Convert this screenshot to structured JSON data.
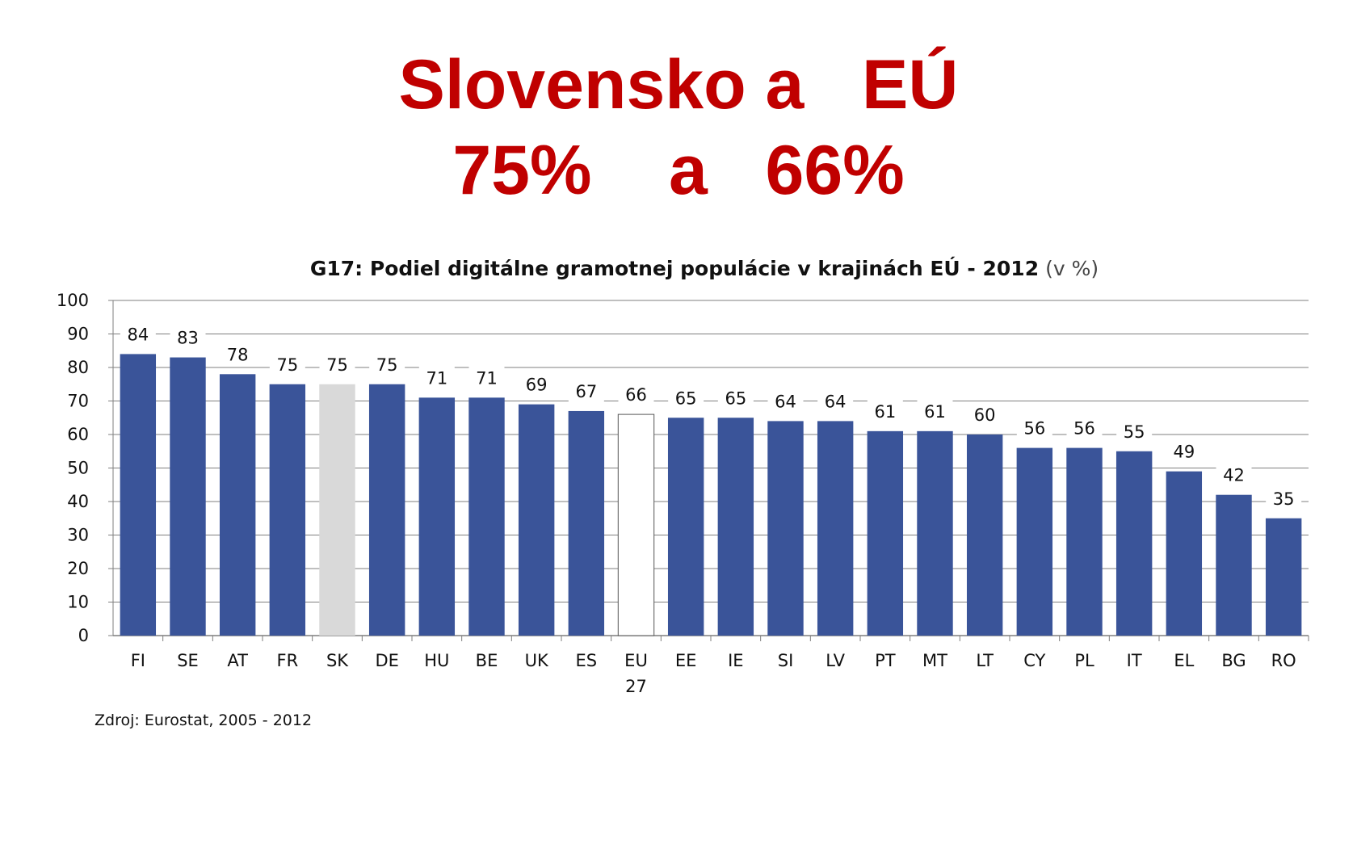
{
  "headline": {
    "line1": "Slovensko a   EÚ",
    "line2": "75%    a   66%"
  },
  "colors": {
    "headline": "#c00000",
    "bar_default": "#3a5499",
    "bar_sk": "#d9d9d9",
    "bar_eu27": "#ffffff",
    "grid": "#7f7f7f"
  },
  "chart_data": {
    "type": "bar",
    "title": "G17: Podiel digitálne gramotnej populácie v krajinách EÚ - 2012",
    "title_unit": "(v %)",
    "xlabel": "",
    "ylabel": "",
    "ylim": [
      0,
      100
    ],
    "yticks": [
      0,
      10,
      20,
      30,
      40,
      50,
      60,
      70,
      80,
      90,
      100
    ],
    "grid": true,
    "legend": "none",
    "categories": [
      "FI",
      "SE",
      "AT",
      "FR",
      "SK",
      "DE",
      "HU",
      "BE",
      "UK",
      "ES",
      "EU 27",
      "EE",
      "IE",
      "SI",
      "LV",
      "PT",
      "MT",
      "LT",
      "CY",
      "PL",
      "IT",
      "EL",
      "BG",
      "RO"
    ],
    "values": [
      84,
      83,
      78,
      75,
      75,
      75,
      71,
      71,
      69,
      67,
      66,
      65,
      65,
      64,
      64,
      61,
      61,
      60,
      56,
      56,
      55,
      49,
      42,
      35
    ],
    "highlight": {
      "SK": "gray",
      "EU 27": "white"
    },
    "source": "Zdroj: Eurostat, 2005 - 2012"
  }
}
